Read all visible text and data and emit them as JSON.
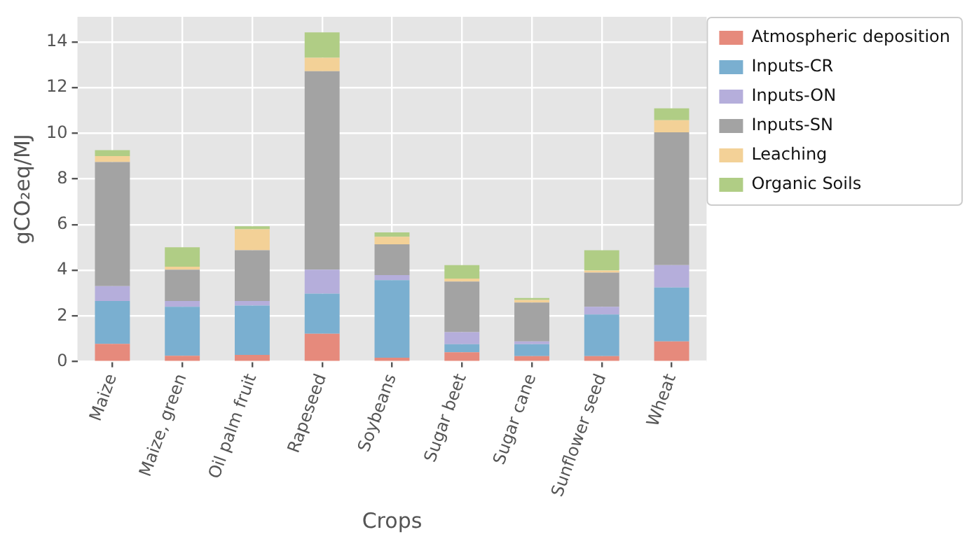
{
  "chart_data": {
    "type": "bar",
    "stacked": true,
    "xlabel": "Crops",
    "ylabel": "gCO₂eq/MJ",
    "categories": [
      "Maize",
      "Maize, green",
      "Oil palm fruit",
      "Rapeseed",
      "Soybeans",
      "Sugar beet",
      "Sugar cane",
      "Sunflower seed",
      "Wheat"
    ],
    "series": [
      {
        "name": "Atmospheric deposition",
        "color": "#e68a7c",
        "values": [
          0.78,
          0.26,
          0.3,
          1.22,
          0.17,
          0.41,
          0.24,
          0.24,
          0.89
        ]
      },
      {
        "name": "Inputs-CR",
        "color": "#7aafd0",
        "values": [
          1.88,
          2.14,
          2.16,
          1.76,
          3.4,
          0.35,
          0.52,
          1.83,
          2.36
        ]
      },
      {
        "name": "Inputs-ON",
        "color": "#b5aedb",
        "values": [
          0.65,
          0.26,
          0.2,
          1.05,
          0.22,
          0.53,
          0.13,
          0.33,
          0.98
        ]
      },
      {
        "name": "Inputs-SN",
        "color": "#a3a3a3",
        "values": [
          5.43,
          1.37,
          2.22,
          8.69,
          1.35,
          2.22,
          1.7,
          1.5,
          5.81
        ]
      },
      {
        "name": "Leaching",
        "color": "#f3d197",
        "values": [
          0.26,
          0.13,
          0.92,
          0.59,
          0.33,
          0.13,
          0.11,
          0.09,
          0.53
        ]
      },
      {
        "name": "Organic Soils",
        "color": "#b0cd85",
        "values": [
          0.26,
          0.85,
          0.13,
          1.11,
          0.19,
          0.59,
          0.09,
          0.89,
          0.52
        ]
      }
    ],
    "ylim": [
      0,
      15.1
    ],
    "yticks": [
      0,
      2,
      4,
      6,
      8,
      10,
      12,
      14
    ],
    "grid": true,
    "legend": "top right"
  }
}
